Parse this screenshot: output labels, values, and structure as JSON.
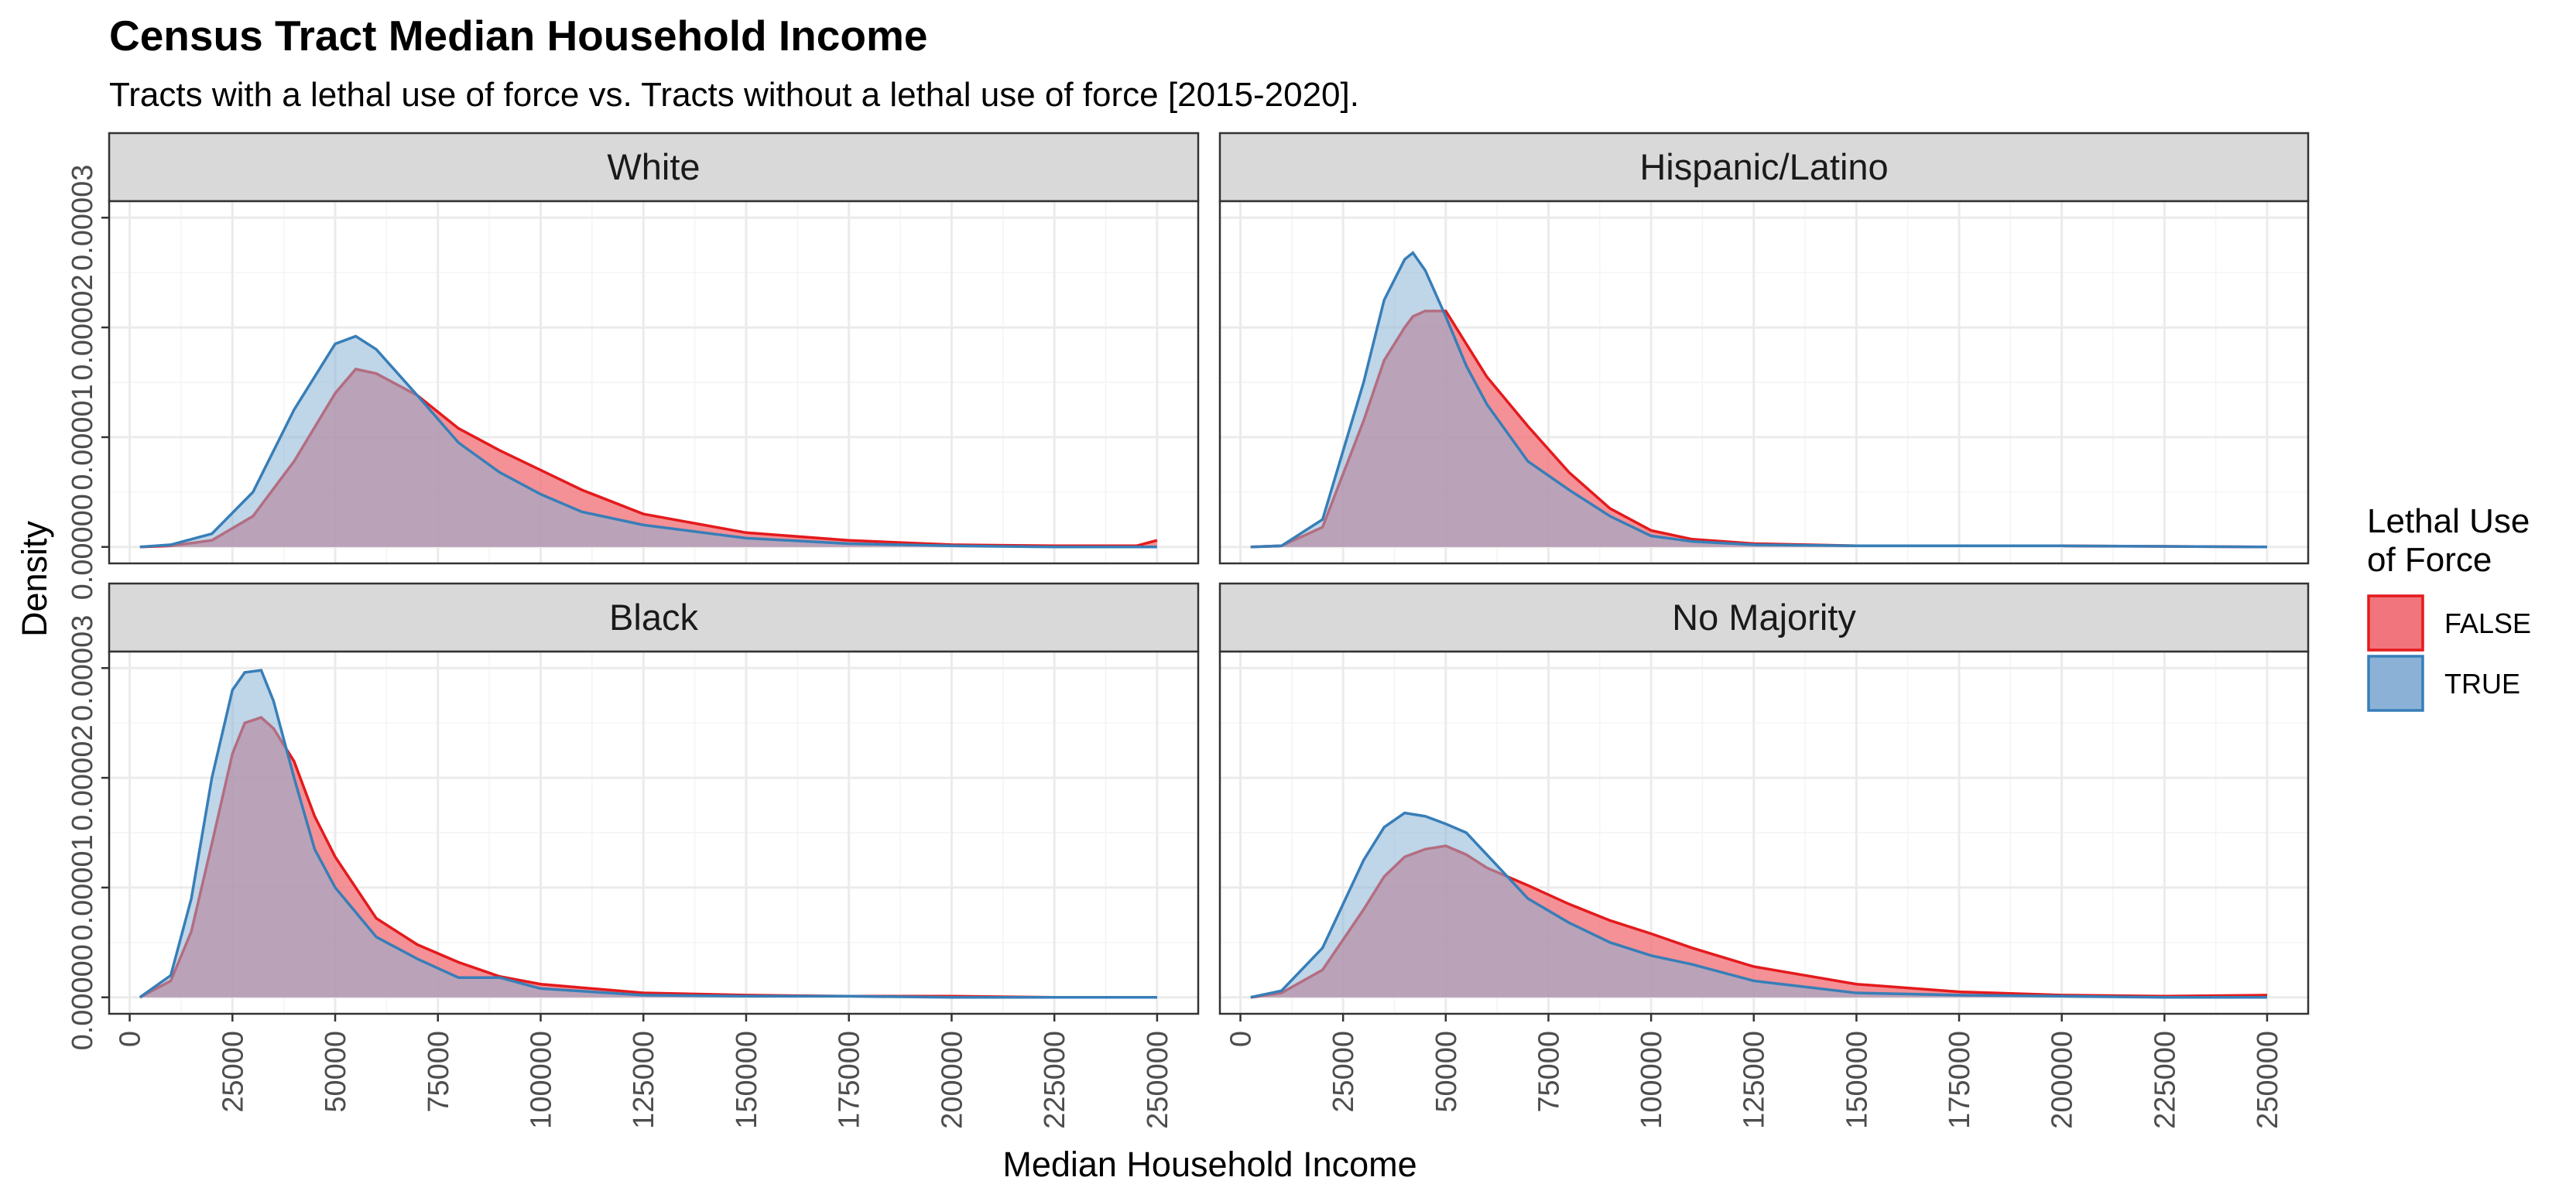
{
  "title": "Census Tract Median Household Income",
  "subtitle": "Tracts with a lethal use of force vs. Tracts without a lethal use of force [2015-2020].",
  "colors": {
    "false_fill": "#F0757C",
    "false_line": "#E41A1C",
    "true_fill": "#8BB2D6",
    "true_line": "#377EB8",
    "strip_bg": "#D9D9D9",
    "grid_major": "#EBEBEB",
    "grid_minor": "#F4F4F4",
    "panel_border": "#333333"
  },
  "legend": {
    "title_line1": "Lethal Use",
    "title_line2": "of Force",
    "items": [
      {
        "label": "FALSE",
        "key": "false"
      },
      {
        "label": "TRUE",
        "key": "true"
      }
    ]
  },
  "chart_data": {
    "type": "area",
    "xlabel": "Median Household Income",
    "ylabel": "Density",
    "xlim": [
      -5000,
      260000
    ],
    "ylim": [
      -1.5e-06,
      3.15e-05
    ],
    "x_ticks": [
      0,
      25000,
      50000,
      75000,
      100000,
      125000,
      150000,
      175000,
      200000,
      225000,
      250000
    ],
    "x_tick_labels": [
      "0",
      "25000",
      "50000",
      "75000",
      "100000",
      "125000",
      "150000",
      "175000",
      "200000",
      "225000",
      "250000"
    ],
    "y_ticks": [
      0,
      1e-05,
      2e-05,
      3e-05
    ],
    "y_tick_labels": [
      "0.00000",
      "0.00001",
      "0.00002",
      "0.00003"
    ],
    "grid": true,
    "legend_position": "right",
    "series_names": [
      "FALSE",
      "TRUE"
    ],
    "panels": [
      {
        "name": "White",
        "x": [
          2500,
          10000,
          20000,
          30000,
          40000,
          50000,
          55000,
          60000,
          70000,
          80000,
          90000,
          100000,
          110000,
          125000,
          150000,
          175000,
          200000,
          225000,
          245000,
          250000
        ],
        "series": [
          {
            "name": "FALSE",
            "values": [
              0,
              1e-07,
              6e-07,
              2.8e-06,
              7.8e-06,
              1.4e-05,
              1.62e-05,
              1.58e-05,
              1.38e-05,
              1.08e-05,
              8.8e-06,
              7e-06,
              5.2e-06,
              3e-06,
              1.3e-06,
              6e-07,
              2e-07,
              1e-07,
              1e-07,
              6e-07
            ]
          },
          {
            "name": "TRUE",
            "values": [
              0,
              2e-07,
              1.2e-06,
              5e-06,
              1.25e-05,
              1.85e-05,
              1.92e-05,
              1.8e-05,
              1.38e-05,
              9.5e-06,
              6.8e-06,
              4.8e-06,
              3.2e-06,
              2e-06,
              8e-07,
              3e-07,
              1e-07,
              0,
              0,
              0
            ]
          }
        ]
      },
      {
        "name": "Hispanic/Latino",
        "x": [
          2500,
          10000,
          20000,
          30000,
          35000,
          40000,
          42000,
          45000,
          50000,
          55000,
          60000,
          70000,
          80000,
          90000,
          100000,
          110000,
          125000,
          150000,
          200000,
          250000
        ],
        "series": [
          {
            "name": "FALSE",
            "values": [
              0,
              1e-07,
              1.8e-06,
              1.15e-05,
              1.7e-05,
              2e-05,
              2.1e-05,
              2.15e-05,
              2.15e-05,
              1.85e-05,
              1.55e-05,
              1.1e-05,
              6.8e-06,
              3.5e-06,
              1.5e-06,
              7e-07,
              3e-07,
              1e-07,
              1e-07,
              0
            ]
          },
          {
            "name": "TRUE",
            "values": [
              0,
              1e-07,
              2.5e-06,
              1.5e-05,
              2.25e-05,
              2.62e-05,
              2.68e-05,
              2.52e-05,
              2.1e-05,
              1.65e-05,
              1.3e-05,
              7.8e-06,
              5.2e-06,
              2.8e-06,
              1e-06,
              5e-07,
              2e-07,
              1e-07,
              1e-07,
              0
            ]
          }
        ]
      },
      {
        "name": "Black",
        "x": [
          2500,
          10000,
          15000,
          20000,
          25000,
          28000,
          32000,
          35000,
          40000,
          45000,
          50000,
          60000,
          70000,
          80000,
          90000,
          100000,
          125000,
          150000,
          175000,
          200000,
          225000,
          250000
        ],
        "series": [
          {
            "name": "FALSE",
            "values": [
              0,
              1.5e-06,
              6e-06,
              1.4e-05,
              2.22e-05,
              2.5e-05,
              2.55e-05,
              2.45e-05,
              2.15e-05,
              1.65e-05,
              1.28e-05,
              7.2e-06,
              4.8e-06,
              3.2e-06,
              1.9e-06,
              1.2e-06,
              4e-07,
              2e-07,
              1e-07,
              1e-07,
              0,
              0
            ]
          },
          {
            "name": "TRUE",
            "values": [
              0,
              2e-06,
              9e-06,
              2e-05,
              2.8e-05,
              2.96e-05,
              2.98e-05,
              2.7e-05,
              2e-05,
              1.35e-05,
              1e-05,
              5.5e-06,
              3.5e-06,
              1.8e-06,
              1.8e-06,
              8e-07,
              2e-07,
              1e-07,
              1e-07,
              0,
              0,
              0
            ]
          }
        ]
      },
      {
        "name": "No Majority",
        "x": [
          2500,
          10000,
          20000,
          30000,
          35000,
          40000,
          45000,
          50000,
          55000,
          60000,
          70000,
          80000,
          90000,
          100000,
          110000,
          125000,
          150000,
          175000,
          200000,
          225000,
          250000
        ],
        "series": [
          {
            "name": "FALSE",
            "values": [
              0,
              4e-07,
              2.5e-06,
              8e-06,
              1.1e-05,
              1.28e-05,
              1.35e-05,
              1.38e-05,
              1.3e-05,
              1.18e-05,
              1.02e-05,
              8.5e-06,
              7e-06,
              5.8e-06,
              4.5e-06,
              2.8e-06,
              1.2e-06,
              5e-07,
              2e-07,
              1e-07,
              2e-07
            ]
          },
          {
            "name": "TRUE",
            "values": [
              0,
              6e-07,
              4.5e-06,
              1.25e-05,
              1.55e-05,
              1.68e-05,
              1.65e-05,
              1.58e-05,
              1.5e-05,
              1.3e-05,
              9e-06,
              6.8e-06,
              5e-06,
              3.8e-06,
              3e-06,
              1.5e-06,
              4e-07,
              2e-07,
              1e-07,
              0,
              0
            ]
          }
        ]
      }
    ]
  }
}
